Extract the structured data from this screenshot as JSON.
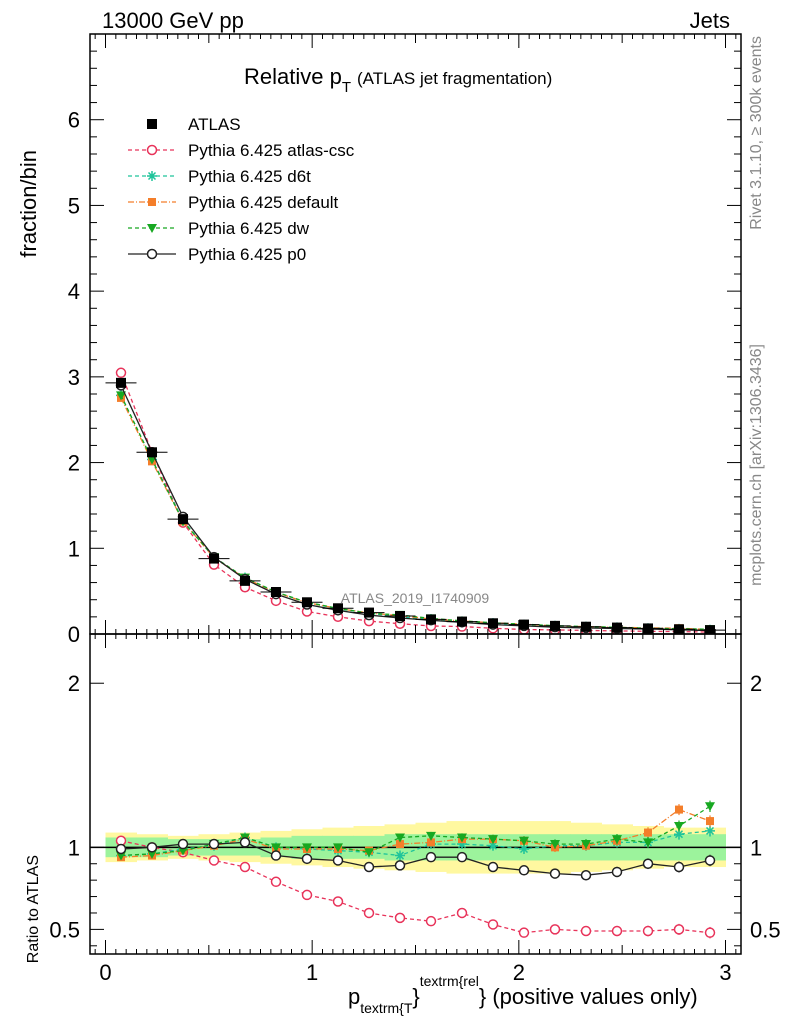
{
  "header": {
    "left": "13000 GeV pp",
    "right": "Jets"
  },
  "side_labels": {
    "rivet": "Rivet 3.1.10, ≥ 300k events",
    "mcplots": "mcplots.cern.ch [arXiv:1306.3436]"
  },
  "watermark": "ATLAS_2019_I1740909",
  "chart_data": {
    "type": "line",
    "title_main": "Relative p",
    "title_sub": "T",
    "title_rest": "(ATLAS jet fragmentation)",
    "ylabel": "fraction/bin",
    "ratio_ylabel": "Ratio to ATLAS",
    "xlabel_p": "p",
    "xlabel_sub": "textrm{T",
    "xlabel_brace": "}",
    "xlabel_sup": "textrm{rel",
    "xlabel_tail": "} (positive values only)",
    "xlim": [
      -0.075,
      3.075
    ],
    "ylim_main": [
      0,
      7
    ],
    "ylim_ratio": [
      0.35,
      2.3
    ],
    "x_ticks": [
      "0",
      "1",
      "2",
      "3"
    ],
    "y_ticks_main": [
      "0",
      "1",
      "2",
      "3",
      "4",
      "5",
      "6"
    ],
    "y_ticks_ratio": [
      "0.5",
      "1",
      "2"
    ],
    "x": [
      0.075,
      0.225,
      0.375,
      0.525,
      0.675,
      0.825,
      0.975,
      1.125,
      1.275,
      1.425,
      1.575,
      1.725,
      1.875,
      2.025,
      2.175,
      2.325,
      2.475,
      2.625,
      2.775,
      2.925
    ],
    "data": {
      "name": "ATLAS",
      "values": [
        2.93,
        2.12,
        1.34,
        0.88,
        0.62,
        0.49,
        0.37,
        0.3,
        0.25,
        0.21,
        0.17,
        0.145,
        0.125,
        0.11,
        0.095,
        0.085,
        0.075,
        0.065,
        0.055,
        0.045
      ],
      "band_inner": [
        0.06,
        0.06,
        0.05,
        0.05,
        0.05,
        0.06,
        0.07,
        0.07,
        0.07,
        0.08,
        0.08,
        0.08,
        0.08,
        0.08,
        0.08,
        0.08,
        0.08,
        0.08,
        0.08,
        0.08
      ],
      "band_outer": [
        0.09,
        0.08,
        0.07,
        0.08,
        0.09,
        0.1,
        0.11,
        0.12,
        0.13,
        0.14,
        0.15,
        0.16,
        0.16,
        0.16,
        0.16,
        0.15,
        0.14,
        0.13,
        0.12,
        0.12
      ]
    },
    "series": [
      {
        "name": "Pythia 6.425 atlas-csc",
        "color": "#e8335a",
        "dash": "4,3",
        "marker": "open-circle",
        "ratio": [
          1.04,
          1.0,
          0.97,
          0.92,
          0.88,
          0.79,
          0.71,
          0.67,
          0.6,
          0.57,
          0.55,
          0.6,
          0.53,
          0.48,
          0.5,
          0.49,
          0.49,
          0.49,
          0.5,
          0.48
        ]
      },
      {
        "name": "Pythia 6.425 d6t",
        "color": "#1fc49a",
        "dash": "4,3",
        "marker": "star",
        "ratio": [
          0.95,
          0.96,
          0.99,
          1.01,
          1.06,
          1.0,
          0.99,
          0.98,
          0.97,
          0.95,
          1.02,
          1.02,
          1.01,
          0.99,
          1.01,
          1.01,
          1.03,
          1.03,
          1.08,
          1.1
        ]
      },
      {
        "name": "Pythia 6.425 default",
        "color": "#f47e2a",
        "dash": "6,2,1,2",
        "marker": "filled-square",
        "ratio": [
          0.94,
          0.95,
          0.98,
          1.01,
          1.05,
          0.99,
          0.99,
          0.99,
          0.98,
          1.02,
          1.03,
          1.05,
          1.05,
          1.04,
          1.0,
          1.01,
          1.04,
          1.09,
          1.23,
          1.16
        ]
      },
      {
        "name": "Pythia 6.425 dw",
        "color": "#17a821",
        "dash": "4,3",
        "marker": "filled-triangle-down",
        "ratio": [
          0.95,
          0.96,
          0.98,
          1.02,
          1.06,
          1.0,
          1.0,
          1.0,
          0.97,
          1.06,
          1.07,
          1.06,
          1.05,
          1.04,
          1.02,
          1.02,
          1.05,
          1.03,
          1.13,
          1.25
        ]
      },
      {
        "name": "Pythia 6.425 p0",
        "color": "#222222",
        "dash": "",
        "marker": "open-circle",
        "ratio": [
          0.99,
          1.0,
          1.02,
          1.02,
          1.03,
          0.95,
          0.93,
          0.92,
          0.88,
          0.89,
          0.94,
          0.94,
          0.88,
          0.86,
          0.84,
          0.83,
          0.85,
          0.9,
          0.88,
          0.92
        ]
      }
    ]
  }
}
